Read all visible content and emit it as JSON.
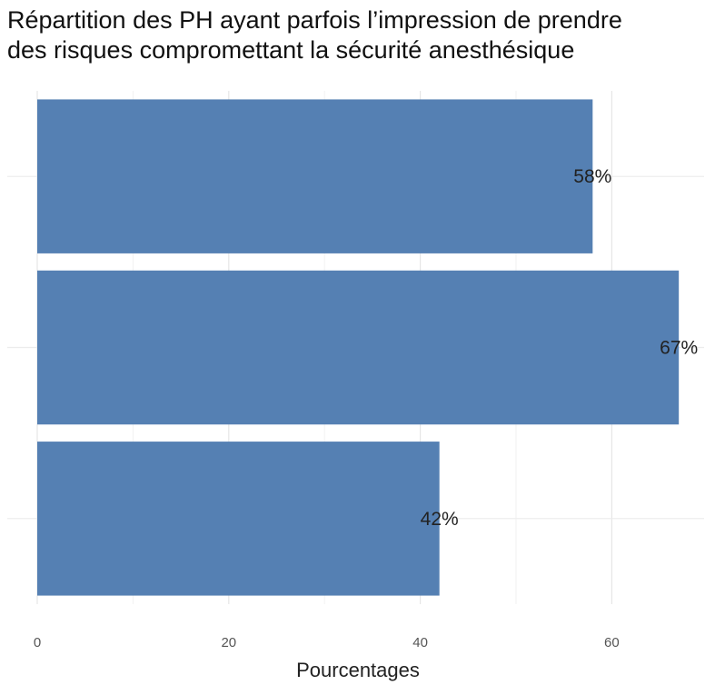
{
  "chart_data": {
    "type": "bar",
    "orientation": "horizontal",
    "title_lines": [
      "Répartition des PH ayant parfois l’impression de prendre",
      "des risques compromettant la sécurité anesthésique"
    ],
    "xlabel": "Pourcentages",
    "ylabel": "",
    "values": [
      58,
      67,
      42
    ],
    "data_labels": [
      "58%",
      "67%",
      "42%"
    ],
    "xlim": [
      0,
      70
    ],
    "x_ticks": [
      0,
      20,
      40,
      60
    ],
    "grid": true,
    "bar_color": "#5580b3",
    "legend": "none"
  }
}
